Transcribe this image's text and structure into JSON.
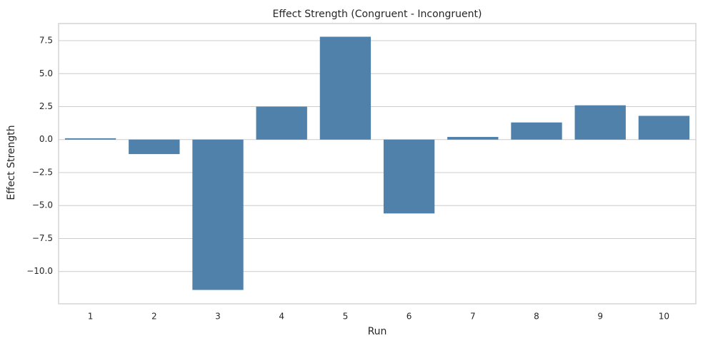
{
  "chart_data": {
    "type": "bar",
    "title": "Effect Strength (Congruent - Incongruent)",
    "xlabel": "Run",
    "ylabel": "Effect Strength",
    "categories": [
      "1",
      "2",
      "3",
      "4",
      "5",
      "6",
      "7",
      "8",
      "9",
      "10"
    ],
    "values": [
      0.1,
      -1.1,
      -11.4,
      2.5,
      7.8,
      -5.6,
      0.2,
      1.3,
      2.6,
      1.8
    ],
    "ylim": [
      -12.45,
      8.8
    ],
    "yticks": [
      7.5,
      5.0,
      2.5,
      0.0,
      -2.5,
      -5.0,
      -7.5,
      -10.0
    ],
    "ytick_labels": [
      "7.5",
      "5.0",
      "2.5",
      "0.0",
      "−2.5",
      "−5.0",
      "−7.5",
      "−10.0"
    ],
    "grid": "y",
    "bar_color": "#4f81aa",
    "grid_color": "#cccccc",
    "spine_color": "#cccccc"
  }
}
